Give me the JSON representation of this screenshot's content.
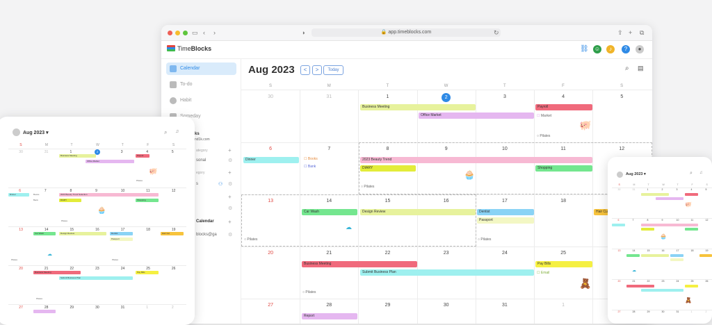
{
  "browser": {
    "url": "app.timeblocks.com"
  },
  "app": {
    "name_light": "Time",
    "name_bold": "Blocks"
  },
  "sidebar": {
    "items": [
      {
        "label": "Calendar"
      },
      {
        "label": "To-do"
      },
      {
        "label": "Habit"
      },
      {
        "label": "Someday"
      }
    ],
    "partial_texts": [
      "ks",
      "nd1k.com",
      "ategory",
      "sonal",
      "egory",
      "s",
      "Calendar",
      "blocks@ga"
    ]
  },
  "calendar": {
    "title": "Aug 2023",
    "prev_label": "<",
    "next_label": ">",
    "today_label": "Today",
    "weekdays": [
      "S",
      "M",
      "T",
      "W",
      "T",
      "F",
      "S"
    ],
    "weeks": [
      [
        "30",
        "31",
        "1",
        "2",
        "3",
        "4",
        "5"
      ],
      [
        "6",
        "7",
        "8",
        "9",
        "10",
        "11",
        "12"
      ],
      [
        "13",
        "14",
        "15",
        "16",
        "17",
        "18",
        "19"
      ],
      [
        "20",
        "21",
        "22",
        "23",
        "24",
        "25",
        "26"
      ],
      [
        "27",
        "28",
        "29",
        "30",
        "31",
        "1",
        "2"
      ]
    ],
    "events": {
      "business_meeting": "Business Meeting",
      "office_market": "Office Market",
      "payroll": "Payroll",
      "market": "Market",
      "pilates": "Pilates",
      "dinner": "Dinner",
      "books": "Books",
      "bank": "Bank",
      "beauty_trend": "2023 Beauty Trend",
      "diary": "DIARY",
      "shopping": "Shopping",
      "car_wash": "Car Wash",
      "design_review": "Design Review",
      "dentist": "Dentist",
      "passport": "Passport",
      "hair_cut": "Hair Cu",
      "business_meeting_2": "Business Meeting",
      "submit_plan": "Submit Business Plan",
      "pay_bills": "Pay Bills",
      "email": "Email",
      "report": "Report"
    }
  },
  "tablet": {
    "title": "Aug 2023",
    "weekdays": [
      "S",
      "M",
      "T",
      "W",
      "T",
      "F",
      "S"
    ],
    "weeks": [
      [
        "30",
        "31",
        "1",
        "2",
        "3",
        "4",
        "5"
      ],
      [
        "6",
        "7",
        "8",
        "9",
        "10",
        "11",
        "12"
      ],
      [
        "13",
        "14",
        "15",
        "16",
        "17",
        "18",
        "19"
      ],
      [
        "20",
        "21",
        "22",
        "23",
        "24",
        "25",
        "26"
      ],
      [
        "27",
        "28",
        "29",
        "30",
        "31",
        "1",
        "2"
      ]
    ],
    "events": {
      "business_meeting": "Business Meeting",
      "office_market": "Office Market",
      "payroll": "Payroll",
      "dinner": "Dinner",
      "books": "Books",
      "bank": "Bank",
      "beauty_trend": "2023 Beauty Trend Selection",
      "diary": "DIARY",
      "shopping": "Shopping",
      "car_wash": "Car Wash",
      "design_review": "Design Review",
      "dentist": "Dentist",
      "passport": "Passport",
      "hair_cut": "Hair Cut",
      "business_meeting_2": "Business Meeting",
      "submit_plan": "Submit Business Plan",
      "pay_bills": "Pay Bills",
      "pilates": "Pilates"
    }
  },
  "phone": {
    "title": "Aug 2023",
    "weekdays": [
      "S",
      "M",
      "T",
      "W",
      "T",
      "F",
      "S"
    ]
  }
}
